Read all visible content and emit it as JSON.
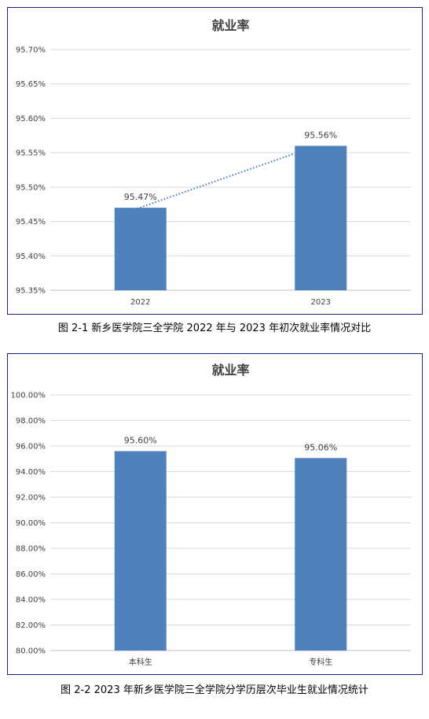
{
  "charts": [
    {
      "id": "chart1",
      "caption": "图 2-1   新乡医学院三全学院 2022 年与 2023 年初次就业率情况对比",
      "chart_data": {
        "type": "bar",
        "title": "就业率",
        "categories": [
          "2022",
          "2023"
        ],
        "values": [
          95.47,
          95.56
        ],
        "data_labels": [
          "95.47%",
          "95.56%"
        ],
        "ylim": [
          95.35,
          95.7
        ],
        "yticks": [
          "95.35%",
          "95.40%",
          "95.45%",
          "95.50%",
          "95.55%",
          "95.60%",
          "95.65%",
          "95.70%"
        ],
        "trendline": "dotted",
        "grid": true,
        "bar_color": "#4f81bd",
        "trend_color": "#4472c4"
      }
    },
    {
      "id": "chart2",
      "caption": "图 2-2    2023 年新乡医学院三全学院分学历层次毕业生就业情况统计",
      "chart_data": {
        "type": "bar",
        "title": "就业率",
        "categories": [
          "本科生",
          "专科生"
        ],
        "values": [
          95.6,
          95.06
        ],
        "data_labels": [
          "95.60%",
          "95.06%"
        ],
        "ylim": [
          80.0,
          100.0
        ],
        "yticks": [
          "80.00%",
          "82.00%",
          "84.00%",
          "86.00%",
          "88.00%",
          "90.00%",
          "92.00%",
          "94.00%",
          "96.00%",
          "98.00%",
          "100.00%"
        ],
        "grid": true,
        "bar_color": "#4f81bd"
      }
    }
  ]
}
